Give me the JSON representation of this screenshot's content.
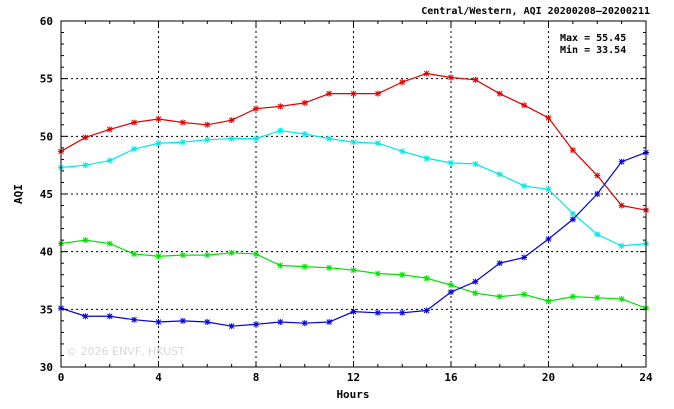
{
  "chart_data": {
    "type": "line",
    "title": "Central/Western, AQI 20200208–20200211",
    "xlabel": "Hours",
    "ylabel": "AQI",
    "xlim": [
      0,
      24
    ],
    "ylim": [
      30,
      60
    ],
    "x_ticks": [
      0,
      4,
      8,
      12,
      16,
      20,
      24
    ],
    "y_ticks": [
      30,
      35,
      40,
      45,
      50,
      55,
      60
    ],
    "grid": true,
    "stats": {
      "max": "Max = 55.45",
      "min": "Min = 33.54"
    },
    "watermark": "© 2026  ENVF, HKUST",
    "x": [
      0,
      1,
      2,
      3,
      4,
      5,
      6,
      7,
      8,
      9,
      10,
      11,
      12,
      13,
      14,
      15,
      16,
      17,
      18,
      19,
      20,
      21,
      22,
      23,
      24
    ],
    "series": [
      {
        "color": "#e00000",
        "values": [
          48.7,
          49.9,
          50.6,
          51.2,
          51.5,
          51.2,
          51.0,
          51.4,
          52.4,
          52.6,
          52.9,
          53.7,
          53.7,
          53.7,
          54.7,
          55.45,
          55.1,
          54.9,
          53.7,
          52.7,
          51.6,
          48.8,
          46.6,
          44.0,
          43.6
        ]
      },
      {
        "color": "#00e8e8",
        "values": [
          47.3,
          47.5,
          47.9,
          48.9,
          49.4,
          49.5,
          49.7,
          49.8,
          49.8,
          50.5,
          50.2,
          49.8,
          49.5,
          49.4,
          48.7,
          48.1,
          47.7,
          47.6,
          46.7,
          45.7,
          45.4,
          43.3,
          41.5,
          40.5,
          40.7
        ]
      },
      {
        "color": "#00e000",
        "values": [
          40.7,
          41.0,
          40.7,
          39.8,
          39.6,
          39.7,
          39.7,
          39.9,
          39.8,
          38.8,
          38.7,
          38.6,
          38.4,
          38.1,
          38.0,
          37.7,
          37.1,
          36.4,
          36.1,
          36.3,
          35.7,
          36.1,
          36.0,
          35.9,
          35.1
        ]
      },
      {
        "color": "#0000d8",
        "values": [
          35.1,
          34.4,
          34.4,
          34.1,
          33.9,
          34.0,
          33.9,
          33.54,
          33.7,
          33.9,
          33.8,
          33.9,
          34.8,
          34.7,
          34.7,
          34.9,
          36.5,
          37.4,
          39.0,
          39.5,
          41.1,
          42.8,
          45.0,
          47.8,
          48.6
        ]
      }
    ]
  }
}
